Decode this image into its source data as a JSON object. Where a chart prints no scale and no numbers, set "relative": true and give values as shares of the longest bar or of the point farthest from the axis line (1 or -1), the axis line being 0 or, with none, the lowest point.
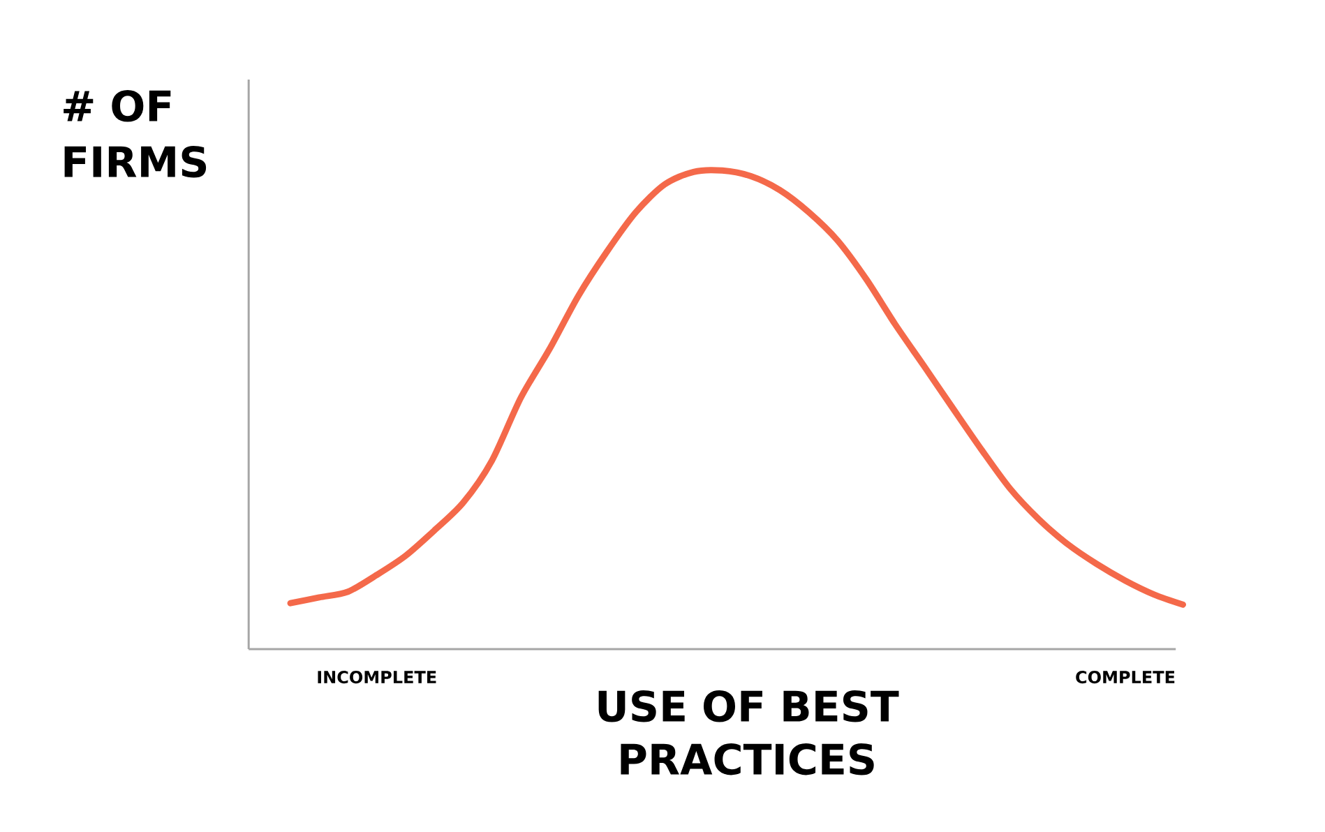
{
  "chart_data": {
    "type": "line",
    "relative": true,
    "ylabel": "# OF FIRMS",
    "xlabel": "USE OF BEST PRACTICES",
    "categories": [
      null,
      null,
      null,
      "INCOMPLETE",
      null,
      null,
      null,
      null,
      null,
      null,
      null,
      null,
      null,
      null,
      null,
      null,
      null,
      null,
      null,
      null,
      null,
      null,
      null,
      null,
      null,
      null,
      null,
      null,
      null,
      "COMPLETE",
      null,
      null
    ],
    "series": [
      {
        "color": "#f4694a",
        "values": [
          0.096,
          0.108,
          0.12,
          0.155,
          0.195,
          0.248,
          0.306,
          0.394,
          0.525,
          0.627,
          0.738,
          0.831,
          0.913,
          0.971,
          0.997,
          1.0,
          0.988,
          0.959,
          0.913,
          0.854,
          0.773,
          0.679,
          0.592,
          0.504,
          0.417,
          0.335,
          0.271,
          0.219,
          0.178,
          0.143,
          0.114,
          0.093
        ]
      }
    ]
  }
}
